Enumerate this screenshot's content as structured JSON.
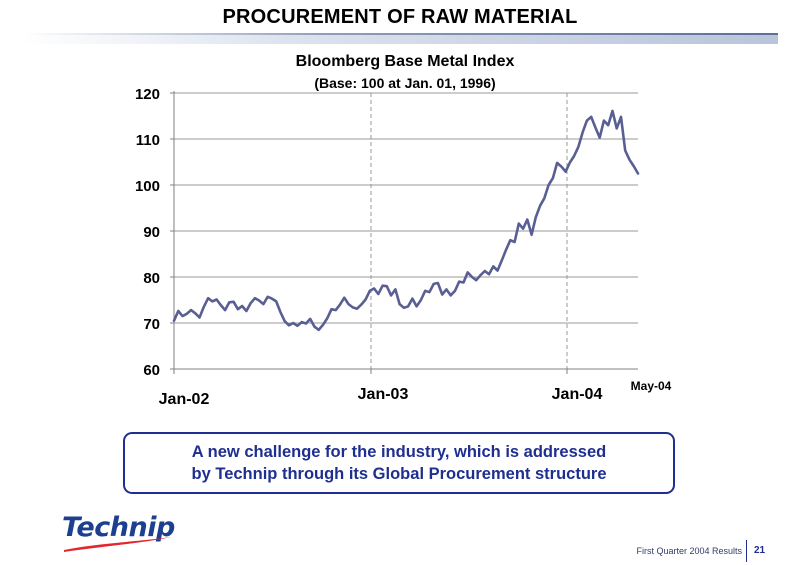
{
  "slide": {
    "title": "PROCUREMENT OF RAW MATERIAL",
    "callout_line1": "A new challenge for the industry, which is addressed",
    "callout_line2": "by Technip through its Global Procurement structure",
    "logo_text": "Technip",
    "footer_text": "First Quarter 2004 Results",
    "page_number": "21",
    "colors": {
      "line": "#5a5f93",
      "callout_border": "#1f2f8f",
      "logo_blue": "#1c3f8f",
      "logo_swoosh": "#e0282e"
    }
  },
  "chart_data": {
    "type": "line",
    "title": "Bloomberg Base Metal Index",
    "subtitle": "(Base: 100 at Jan. 01, 1996)",
    "xlabel": "",
    "ylabel": "",
    "ylim": [
      60,
      120
    ],
    "yticks": [
      60,
      70,
      80,
      90,
      100,
      110,
      120
    ],
    "x_tick_labels": [
      "Jan-02",
      "Jan-03",
      "Jan-04",
      "May-04"
    ],
    "grid": {
      "horizontal": true,
      "vertical_dashed_at": [
        "Jan-03",
        "Jan-04"
      ]
    },
    "series": [
      {
        "values": [
          70.5,
          72.6,
          71.5,
          72.0,
          72.8,
          72.1,
          71.2,
          73.5,
          75.4,
          74.7,
          75.1,
          73.9,
          72.8,
          74.5,
          74.6,
          73.0,
          73.7,
          72.6,
          74.3,
          75.4,
          74.9,
          74.1,
          75.7,
          75.3,
          74.7,
          72.4,
          70.4,
          69.5,
          70.0,
          69.4,
          70.2,
          69.9,
          70.9,
          69.2,
          68.5,
          69.6,
          71.0,
          73.0,
          72.8,
          74.0,
          75.5,
          74.1,
          73.4,
          73.1,
          74.0,
          75.1,
          77.0,
          77.5,
          76.3,
          78.1,
          78.0,
          76.0,
          77.3,
          74.1,
          73.3,
          73.6,
          75.3,
          73.6,
          75.0,
          77.0,
          76.7,
          78.5,
          78.7,
          76.2,
          77.3,
          76.0,
          77.0,
          79.0,
          78.8,
          81.0,
          80.0,
          79.3,
          80.4,
          81.3,
          80.6,
          82.3,
          81.4,
          83.6,
          85.9,
          88.0,
          87.6,
          91.6,
          90.5,
          92.5,
          89.2,
          93.0,
          95.5,
          97.1,
          100.0,
          101.5,
          104.8,
          104.0,
          102.9,
          104.9,
          106.3,
          108.3,
          111.5,
          114.0,
          114.8,
          112.5,
          110.3,
          114.0,
          113.0,
          116.1,
          112.3,
          114.8,
          107.5,
          105.5,
          104.1,
          102.5
        ]
      }
    ]
  }
}
